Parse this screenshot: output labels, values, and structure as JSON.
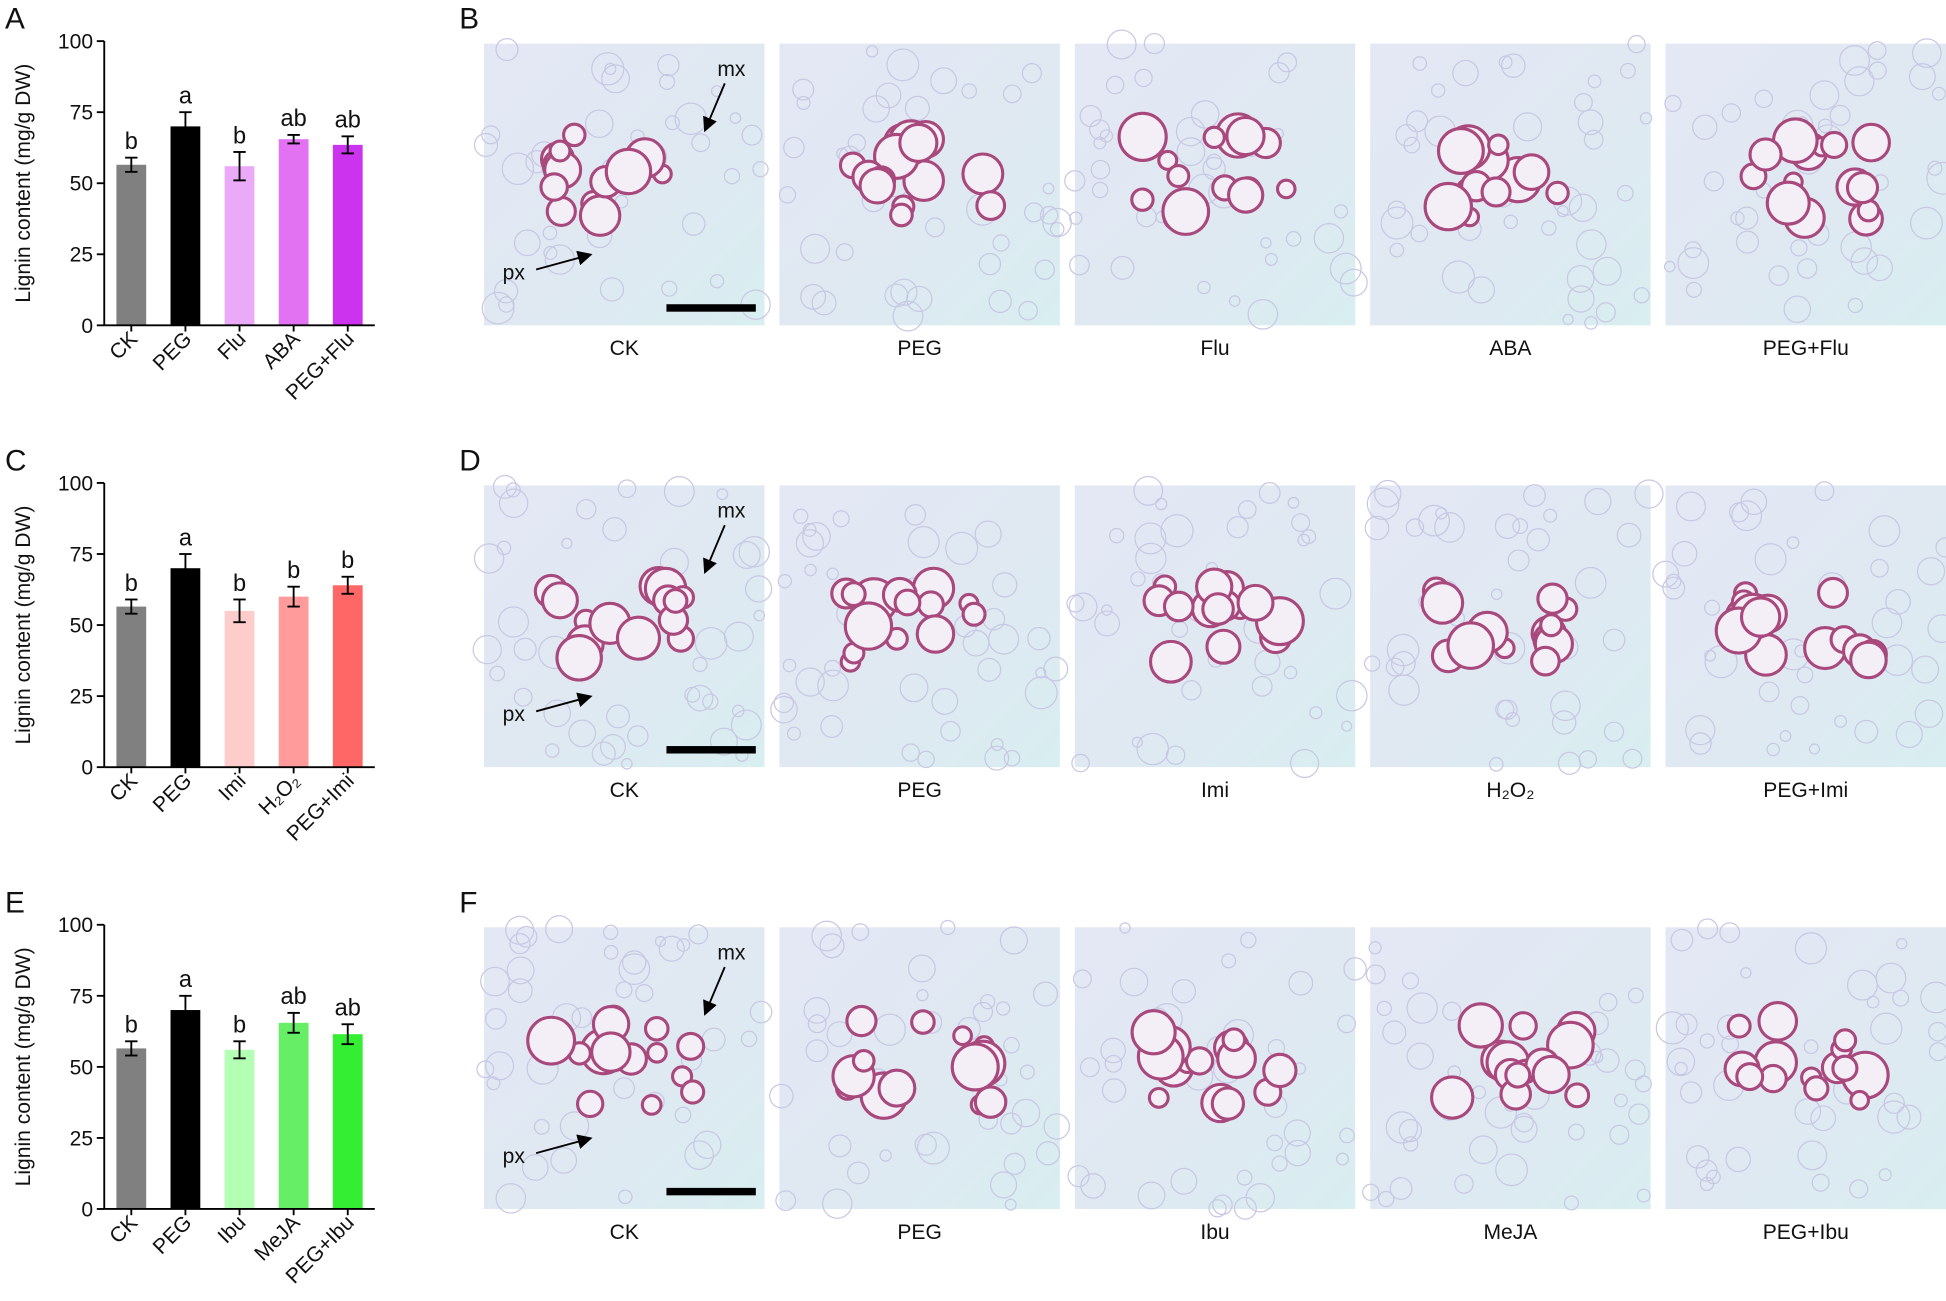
{
  "chart_data": [
    {
      "type": "bar",
      "panel": "A",
      "ylabel": "Lignin content (mg/g DW)",
      "categories": [
        "CK",
        "PEG",
        "Flu",
        "ABA",
        "PEG+Flu"
      ],
      "values": [
        56.5,
        70,
        56,
        65.5,
        63.5
      ],
      "errors": [
        2.5,
        5,
        5,
        1.5,
        3
      ],
      "letters": [
        "b",
        "a",
        "b",
        "ab",
        "ab"
      ],
      "colors": [
        "#808080",
        "#000000",
        "#ebaaf8",
        "#e272f2",
        "#cc33ee"
      ],
      "ylim": [
        0,
        100
      ],
      "yticks": [
        0,
        25,
        50,
        75,
        100
      ]
    },
    {
      "type": "bar",
      "panel": "C",
      "ylabel": "Lignin content (mg/g DW)",
      "categories": [
        "CK",
        "PEG",
        "Imi",
        "H₂O₂",
        "PEG+Imi"
      ],
      "values": [
        56.5,
        70,
        55,
        60,
        64
      ],
      "errors": [
        2.5,
        5,
        4,
        3.5,
        3
      ],
      "letters": [
        "b",
        "a",
        "b",
        "b",
        "b"
      ],
      "colors": [
        "#808080",
        "#000000",
        "#ffcccc",
        "#ff9b9b",
        "#ff6666"
      ],
      "ylim": [
        0,
        100
      ],
      "yticks": [
        0,
        25,
        50,
        75,
        100
      ]
    },
    {
      "type": "bar",
      "panel": "E",
      "ylabel": "Lignin content (mg/g DW)",
      "categories": [
        "CK",
        "PEG",
        "Ibu",
        "MeJA",
        "PEG+Ibu"
      ],
      "values": [
        56.5,
        70,
        56,
        65.5,
        61.5
      ],
      "errors": [
        2.5,
        5,
        3,
        3.5,
        3.5
      ],
      "letters": [
        "b",
        "a",
        "b",
        "ab",
        "ab"
      ],
      "colors": [
        "#808080",
        "#000000",
        "#b3ffb3",
        "#66ee66",
        "#33ee33"
      ],
      "ylim": [
        0,
        100
      ],
      "yticks": [
        0,
        25,
        50,
        75,
        100
      ]
    }
  ],
  "micrographs": [
    {
      "panel": "B",
      "labels": [
        "CK",
        "PEG",
        "Flu",
        "ABA",
        "PEG+Flu"
      ],
      "annotations": [
        "mx",
        "px"
      ]
    },
    {
      "panel": "D",
      "labels": [
        "CK",
        "PEG",
        "Imi",
        "H₂O₂",
        "PEG+Imi"
      ],
      "annotations": [
        "mx",
        "px"
      ]
    },
    {
      "panel": "F",
      "labels": [
        "CK",
        "PEG",
        "Ibu",
        "MeJA",
        "PEG+Ibu"
      ],
      "annotations": [
        "mx",
        "px"
      ]
    }
  ]
}
